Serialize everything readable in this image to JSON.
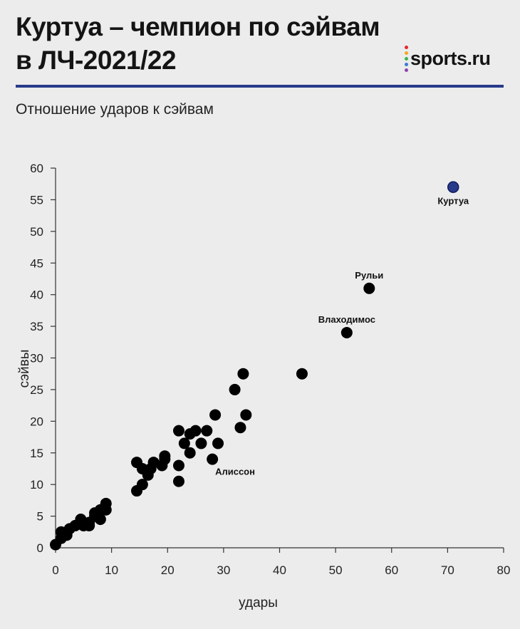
{
  "header": {
    "title_line1": "Куртуа – чемпион по сэйвам",
    "title_line2": "в ЛЧ-2021/22",
    "subtitle": "Отношение ударов к сэйвам"
  },
  "logo": {
    "text": "sports.ru",
    "dot_colors": [
      "#e6262e",
      "#f5a623",
      "#3bb54a",
      "#3a7bd5",
      "#8e44ad"
    ]
  },
  "colors": {
    "accent": "#283a8a",
    "point": "#000000",
    "highlight": "#283a8a"
  },
  "chart_data": {
    "type": "scatter",
    "title": "Куртуа – чемпион по сэйвам в ЛЧ-2021/22",
    "subtitle": "Отношение ударов к сэйвам",
    "xlabel": "удары",
    "ylabel": "сэйвы",
    "xlim": [
      0,
      80
    ],
    "ylim": [
      0,
      60
    ],
    "xticks": [
      0,
      10,
      20,
      30,
      40,
      50,
      60,
      70,
      80
    ],
    "yticks": [
      0,
      5,
      10,
      15,
      20,
      25,
      30,
      35,
      40,
      45,
      50,
      55,
      60
    ],
    "grid": false,
    "points": [
      {
        "x": 0,
        "y": 0.5
      },
      {
        "x": 1,
        "y": 1.5
      },
      {
        "x": 1,
        "y": 2.5
      },
      {
        "x": 2,
        "y": 2
      },
      {
        "x": 2.5,
        "y": 3
      },
      {
        "x": 3.5,
        "y": 3.5
      },
      {
        "x": 4.5,
        "y": 4.5
      },
      {
        "x": 5,
        "y": 3.5
      },
      {
        "x": 6,
        "y": 3.5
      },
      {
        "x": 6,
        "y": 4
      },
      {
        "x": 7,
        "y": 5
      },
      {
        "x": 7,
        "y": 5.5
      },
      {
        "x": 8,
        "y": 4.5
      },
      {
        "x": 8,
        "y": 6
      },
      {
        "x": 9,
        "y": 6
      },
      {
        "x": 9,
        "y": 7
      },
      {
        "x": 14.5,
        "y": 9
      },
      {
        "x": 14.5,
        "y": 13.5
      },
      {
        "x": 15.5,
        "y": 10
      },
      {
        "x": 15.5,
        "y": 12.5
      },
      {
        "x": 16.5,
        "y": 11.5
      },
      {
        "x": 17,
        "y": 12.5
      },
      {
        "x": 17.5,
        "y": 13.5
      },
      {
        "x": 19,
        "y": 13
      },
      {
        "x": 19.5,
        "y": 14
      },
      {
        "x": 19.5,
        "y": 14.5
      },
      {
        "x": 22,
        "y": 10.5
      },
      {
        "x": 22,
        "y": 13
      },
      {
        "x": 22,
        "y": 18.5
      },
      {
        "x": 23,
        "y": 16.5
      },
      {
        "x": 24,
        "y": 15
      },
      {
        "x": 24,
        "y": 18
      },
      {
        "x": 25,
        "y": 18.5
      },
      {
        "x": 26,
        "y": 16.5
      },
      {
        "x": 27,
        "y": 18.5
      },
      {
        "x": 28,
        "y": 14
      },
      {
        "x": 28.5,
        "y": 21
      },
      {
        "x": 29,
        "y": 16.5
      },
      {
        "x": 32,
        "y": 25
      },
      {
        "x": 33,
        "y": 19
      },
      {
        "x": 33.5,
        "y": 27.5
      },
      {
        "x": 34,
        "y": 21
      },
      {
        "x": 44,
        "y": 27.5
      },
      {
        "x": 52,
        "y": 34,
        "label": "Влаходимос"
      },
      {
        "x": 56,
        "y": 41,
        "label": "Рульи"
      },
      {
        "x": 71,
        "y": 57,
        "label": "Куртуа",
        "highlight": true
      }
    ],
    "annotations": [
      {
        "text": "Алиссон",
        "x": 28.5,
        "y": 12
      }
    ]
  }
}
